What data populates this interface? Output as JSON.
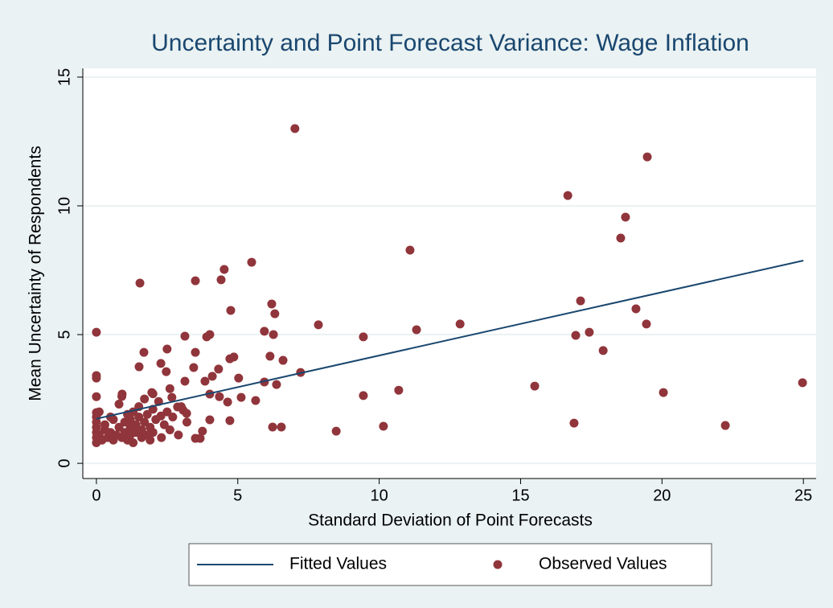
{
  "chart_data": {
    "type": "scatter",
    "title": "Uncertainty and Point Forecast Variance: Wage Inflation",
    "x_label": "Standard Deviation of Point Forecasts",
    "y_label": "Mean Uncertainty of Respondents",
    "xlim": [
      -0.48,
      25.45
    ],
    "ylim": [
      -0.59,
      15.34
    ],
    "xticks": [
      0,
      5,
      10,
      15,
      20,
      25
    ],
    "yticks": [
      0,
      5,
      10,
      15
    ],
    "grid": true,
    "legend": "bottom",
    "series": [
      {
        "name": "Fitted Values",
        "type": "line",
        "color": "#1a476f",
        "x": [
          0,
          25
        ],
        "values": [
          1.73,
          7.875
        ]
      },
      {
        "name": "Observed Values",
        "type": "scatter",
        "color": "#90353b",
        "x": [
          7.02,
          19.48,
          16.67,
          18.71,
          18.54,
          11.09,
          5.49,
          4.52,
          1.54,
          3.5,
          4.41,
          17.12,
          6.2,
          6.31,
          4.75,
          19.08,
          19.45,
          7.85,
          12.86,
          11.32,
          5.94,
          6.26,
          17.43,
          16.95,
          9.44,
          4.01,
          3.9,
          3.13,
          0,
          17.92,
          2.5,
          1.68,
          3.5,
          6.14,
          4.86,
          4.72,
          6.6,
          7.22,
          5.94,
          1.51,
          3.44,
          4.32,
          0,
          0,
          15.5,
          24.97,
          20.05,
          10.69,
          9.44,
          6.37,
          5.63,
          5.12,
          16.89,
          22.24,
          10.15,
          8.48,
          6.54,
          6.23,
          4.72,
          4.01,
          3.75,
          3.67,
          3.5,
          2.47,
          2.28,
          1.96,
          3.13,
          3.84,
          4.1,
          5.03,
          4.64,
          4.35,
          4.01,
          2.67,
          3.07,
          3.19,
          2.87,
          2.28,
          0,
          0,
          0.91,
          0.0,
          0.0,
          0.0,
          0.0,
          0.0,
          0.0,
          0.1,
          0.2,
          0.3,
          0.3,
          0.4,
          0.5,
          0.6,
          0.6,
          0.7,
          0.8,
          0.8,
          0.9,
          1.0,
          1.0,
          1.1,
          1.1,
          1.2,
          1.2,
          1.3,
          1.3,
          1.4,
          1.4,
          1.5,
          1.5,
          1.6,
          1.6,
          1.7,
          1.7,
          1.8,
          1.8,
          1.9,
          1.9,
          2.0,
          2.0,
          2.1,
          2.2,
          2.3,
          2.4,
          2.5,
          2.6,
          2.7,
          2.9,
          3.0,
          3.2,
          0.1,
          0.5,
          0.9,
          1.2,
          2.0,
          2.6
        ],
        "values": [
          13.0,
          11.9,
          10.4,
          9.56,
          8.75,
          8.28,
          7.81,
          7.53,
          7.0,
          7.09,
          7.13,
          6.31,
          6.19,
          5.81,
          5.94,
          6.0,
          5.41,
          5.38,
          5.41,
          5.19,
          5.13,
          5.0,
          5.09,
          4.97,
          4.91,
          5.0,
          4.91,
          4.94,
          5.09,
          4.38,
          4.44,
          4.31,
          4.31,
          4.16,
          4.13,
          4.06,
          4.0,
          3.53,
          3.16,
          3.75,
          3.72,
          3.66,
          3.41,
          3.31,
          3.0,
          3.13,
          2.75,
          2.84,
          2.63,
          3.06,
          2.44,
          2.56,
          1.56,
          1.47,
          1.44,
          1.25,
          1.41,
          1.41,
          1.66,
          1.69,
          1.25,
          0.97,
          0.97,
          3.56,
          3.88,
          2.75,
          3.19,
          3.19,
          3.38,
          3.31,
          2.38,
          2.59,
          2.69,
          2.56,
          2.06,
          1.94,
          2.19,
          1.84,
          2.59,
          1.97,
          2.69,
          0.8,
          1.0,
          1.2,
          1.4,
          1.6,
          1.8,
          1.1,
          0.9,
          1.3,
          1.5,
          1.0,
          1.2,
          0.9,
          1.7,
          1.1,
          1.4,
          2.3,
          1.0,
          1.6,
          1.2,
          0.9,
          1.9,
          1.4,
          1.1,
          2.0,
          0.8,
          1.5,
          1.2,
          1.8,
          2.2,
          1.0,
          1.3,
          1.6,
          2.5,
          1.1,
          1.9,
          0.9,
          1.4,
          2.1,
          1.2,
          1.7,
          2.4,
          1.0,
          1.5,
          2.0,
          1.3,
          1.8,
          1.1,
          2.2,
          1.6,
          2.0,
          1.8,
          2.6,
          1.7,
          2.7,
          2.9
        ]
      }
    ]
  }
}
